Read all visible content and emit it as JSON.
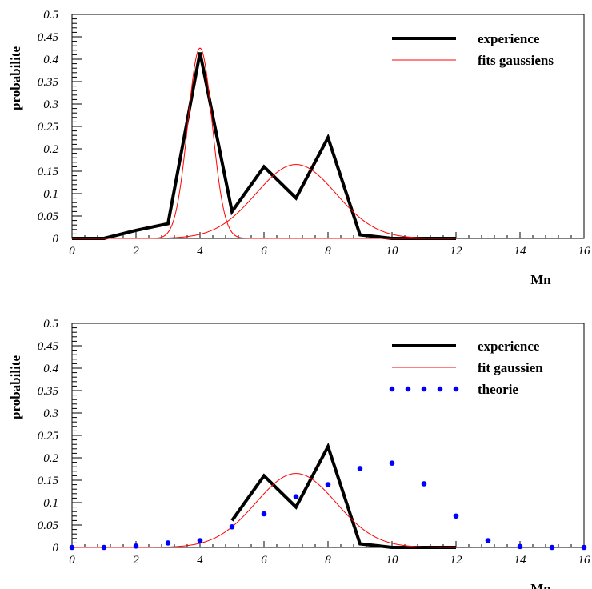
{
  "chart_data": [
    {
      "type": "line",
      "xlabel": "Mn",
      "ylabel": "probabilite",
      "xlim": [
        0,
        16
      ],
      "ylim": [
        0,
        0.5
      ],
      "x_ticks": [
        "0",
        "2",
        "4",
        "6",
        "8",
        "10",
        "12",
        "14",
        "16"
      ],
      "y_ticks": [
        "0",
        "0.05",
        "0.1",
        "0.15",
        "0.2",
        "0.25",
        "0.3",
        "0.35",
        "0.4",
        "0.45",
        "0.5"
      ],
      "legend_position": "top-right",
      "series": [
        {
          "name": "experience",
          "kind": "line",
          "color": "#000000",
          "x": [
            0,
            1,
            2,
            3,
            4,
            5,
            6,
            7,
            8,
            9,
            10,
            11,
            12
          ],
          "y": [
            0,
            0,
            0.018,
            0.033,
            0.415,
            0.06,
            0.16,
            0.09,
            0.225,
            0.008,
            0,
            0,
            0
          ]
        },
        {
          "name": "fits gaussiens",
          "kind": "gaussian",
          "color": "#ff0000",
          "components": [
            {
              "amplitude": 0.425,
              "mean": 4.0,
              "sigma": 0.38,
              "x_range": [
                0,
                12
              ]
            },
            {
              "amplitude": 0.165,
              "mean": 7.0,
              "sigma": 1.25,
              "x_range": [
                0,
                12
              ]
            }
          ]
        }
      ]
    },
    {
      "type": "line",
      "xlabel": "Mn",
      "ylabel": "probabilite",
      "xlim": [
        0,
        16
      ],
      "ylim": [
        0,
        0.5
      ],
      "x_ticks": [
        "0",
        "2",
        "4",
        "6",
        "8",
        "10",
        "12",
        "14",
        "16"
      ],
      "y_ticks": [
        "0",
        "0.05",
        "0.1",
        "0.15",
        "0.2",
        "0.25",
        "0.3",
        "0.35",
        "0.4",
        "0.45",
        "0.5"
      ],
      "legend_position": "top-right",
      "series": [
        {
          "name": "experience",
          "kind": "line",
          "color": "#000000",
          "x": [
            5,
            6,
            7,
            8,
            9,
            10,
            11,
            12
          ],
          "y": [
            0.06,
            0.16,
            0.09,
            0.225,
            0.008,
            0,
            0,
            0
          ]
        },
        {
          "name": "fit gaussien",
          "kind": "gaussian",
          "color": "#ff0000",
          "components": [
            {
              "amplitude": 0.165,
              "mean": 7.0,
              "sigma": 1.25,
              "x_range": [
                0,
                12
              ]
            }
          ]
        },
        {
          "name": "theorie",
          "kind": "scatter",
          "color": "#0000ff",
          "x": [
            0,
            1,
            2,
            3,
            4,
            5,
            6,
            7,
            8,
            9,
            10,
            11,
            12,
            13,
            14,
            15,
            16
          ],
          "y": [
            0,
            0,
            0.003,
            0.01,
            0.015,
            0.046,
            0.075,
            0.113,
            0.14,
            0.176,
            0.188,
            0.142,
            0.07,
            0.015,
            0.002,
            0,
            0
          ]
        }
      ]
    }
  ]
}
